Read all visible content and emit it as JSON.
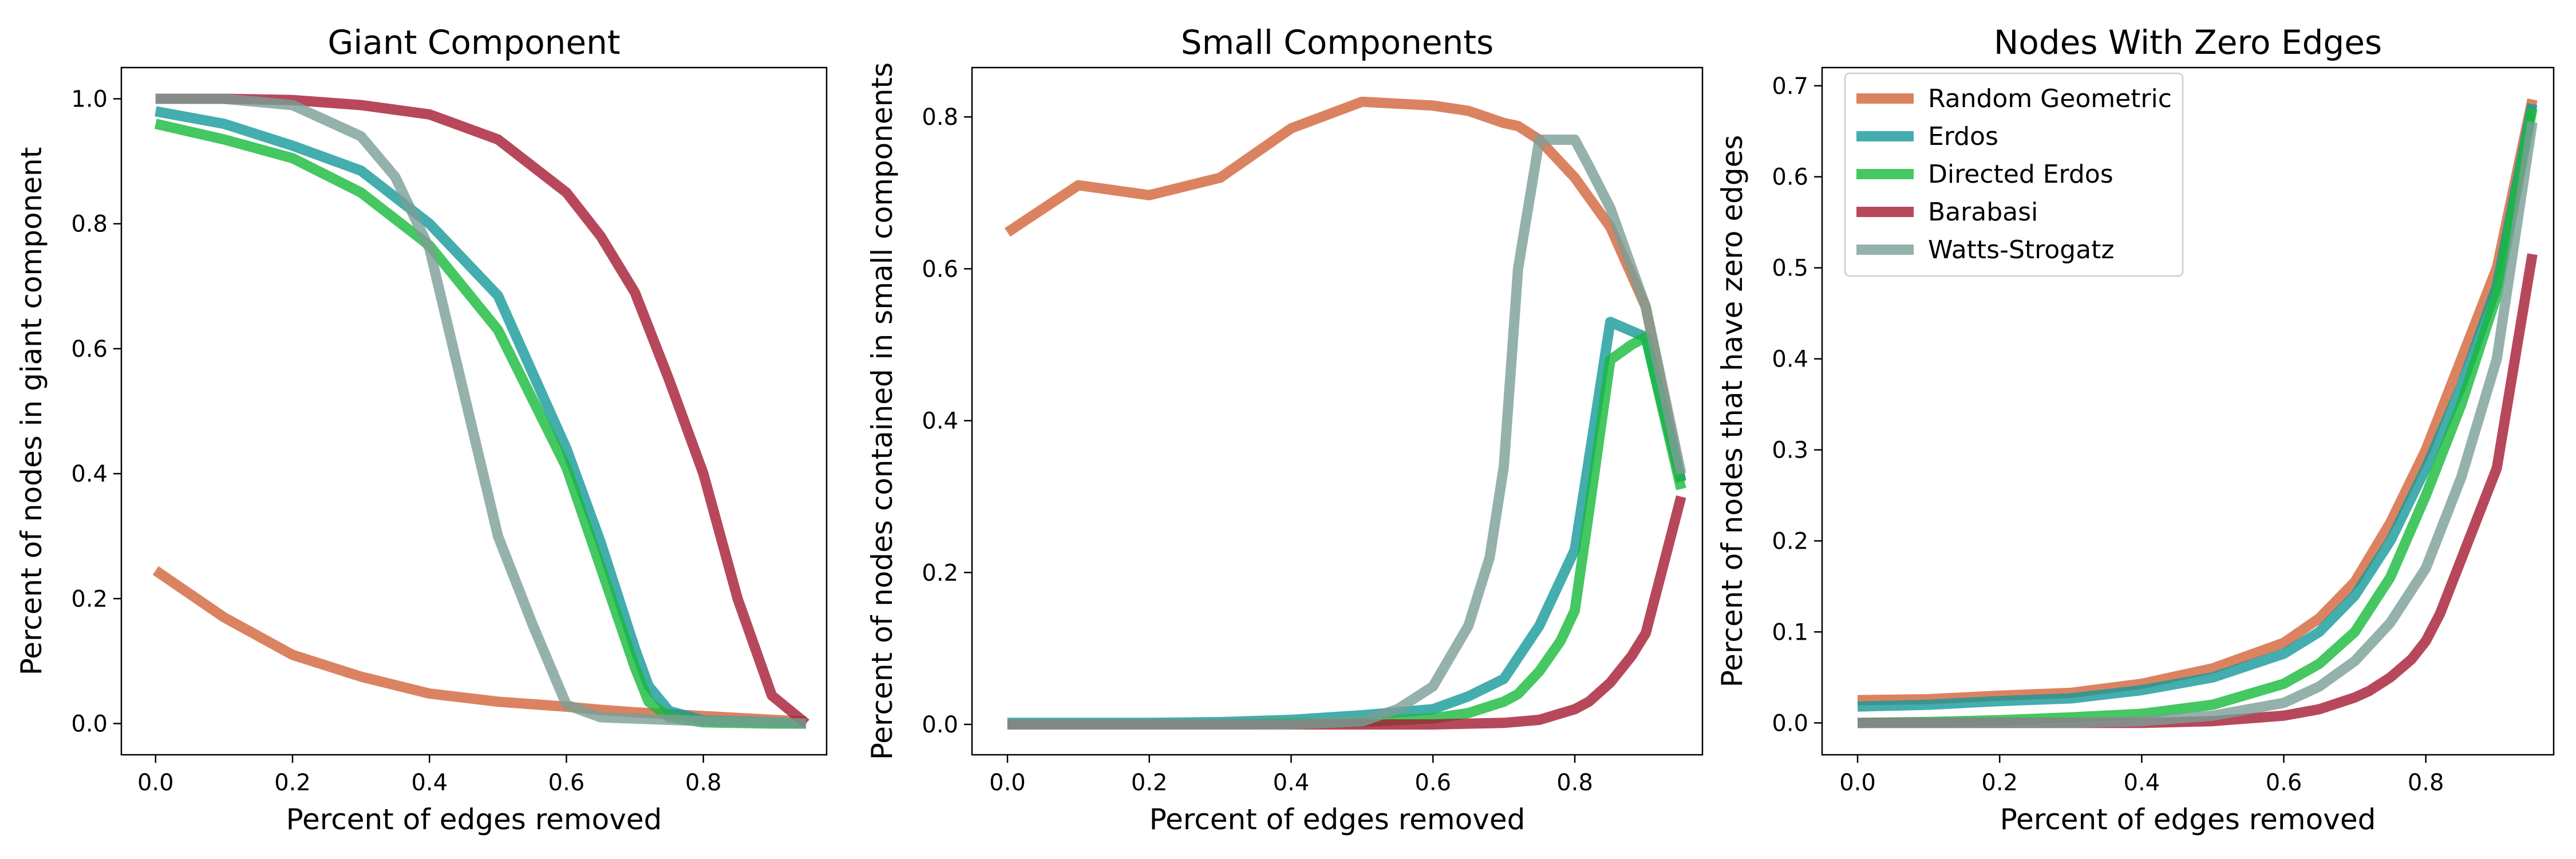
{
  "colors": {
    "Random Geometric": "#d2643a",
    "Erdos": "#15999a",
    "Directed Erdos": "#16b93a",
    "Barabasi": "#a51a32",
    "Watts-Strogatz": "#7a9d96"
  },
  "chart_data": [
    {
      "type": "line",
      "title": "Giant Component",
      "xlabel": "Percent of edges removed",
      "ylabel": "Percent of nodes in giant component",
      "xlim": [
        -0.05,
        0.98
      ],
      "ylim": [
        -0.05,
        1.05
      ],
      "xticks": [
        0.0,
        0.2,
        0.4,
        0.6,
        0.8
      ],
      "yticks": [
        0.0,
        0.2,
        0.4,
        0.6,
        0.8,
        1.0
      ],
      "xtick_labels": [
        "0.0",
        "0.2",
        "0.4",
        "0.6",
        "0.8"
      ],
      "ytick_labels": [
        "0.0",
        "0.2",
        "0.4",
        "0.6",
        "0.8",
        "1.0"
      ],
      "grid": false,
      "series": [
        {
          "name": "Random Geometric",
          "x": [
            0.0,
            0.1,
            0.2,
            0.3,
            0.4,
            0.5,
            0.6,
            0.65,
            0.7,
            0.75,
            0.8,
            0.85,
            0.9,
            0.95
          ],
          "y": [
            0.245,
            0.17,
            0.11,
            0.075,
            0.048,
            0.035,
            0.027,
            0.022,
            0.018,
            0.015,
            0.012,
            0.009,
            0.006,
            0.003
          ]
        },
        {
          "name": "Erdos",
          "x": [
            0.0,
            0.1,
            0.2,
            0.3,
            0.4,
            0.5,
            0.6,
            0.65,
            0.7,
            0.72,
            0.75,
            0.8,
            0.9,
            0.95
          ],
          "y": [
            0.98,
            0.96,
            0.925,
            0.885,
            0.8,
            0.685,
            0.44,
            0.29,
            0.12,
            0.06,
            0.02,
            0.005,
            0.002,
            0.0
          ]
        },
        {
          "name": "Directed Erdos",
          "x": [
            0.0,
            0.1,
            0.2,
            0.3,
            0.4,
            0.5,
            0.6,
            0.65,
            0.7,
            0.72,
            0.75,
            0.8,
            0.9,
            0.95
          ],
          "y": [
            0.96,
            0.935,
            0.905,
            0.85,
            0.765,
            0.63,
            0.41,
            0.25,
            0.09,
            0.035,
            0.01,
            0.002,
            0.0,
            0.0
          ]
        },
        {
          "name": "Barabasi",
          "x": [
            0.0,
            0.1,
            0.2,
            0.3,
            0.4,
            0.5,
            0.6,
            0.65,
            0.7,
            0.75,
            0.8,
            0.85,
            0.9,
            0.95
          ],
          "y": [
            1.0,
            1.0,
            0.998,
            0.99,
            0.975,
            0.935,
            0.85,
            0.78,
            0.69,
            0.55,
            0.4,
            0.2,
            0.045,
            0.0
          ]
        },
        {
          "name": "Watts-Strogatz",
          "x": [
            0.0,
            0.1,
            0.2,
            0.3,
            0.35,
            0.4,
            0.45,
            0.5,
            0.55,
            0.6,
            0.65,
            0.7,
            0.8,
            0.9,
            0.95
          ],
          "y": [
            1.0,
            1.0,
            0.99,
            0.94,
            0.875,
            0.76,
            0.53,
            0.3,
            0.16,
            0.03,
            0.01,
            0.008,
            0.004,
            0.002,
            0.0
          ]
        }
      ]
    },
    {
      "type": "line",
      "title": "Small Components",
      "xlabel": "Percent of edges removed",
      "ylabel": "Percent of nodes contained in small components",
      "xlim": [
        -0.05,
        0.98
      ],
      "ylim": [
        -0.04,
        0.865
      ],
      "xticks": [
        0.0,
        0.2,
        0.4,
        0.6,
        0.8
      ],
      "yticks": [
        0.0,
        0.2,
        0.4,
        0.6,
        0.8
      ],
      "xtick_labels": [
        "0.0",
        "0.2",
        "0.4",
        "0.6",
        "0.8"
      ],
      "ytick_labels": [
        "0.0",
        "0.2",
        "0.4",
        "0.6",
        "0.8"
      ],
      "grid": false,
      "series": [
        {
          "name": "Random Geometric",
          "x": [
            0.0,
            0.1,
            0.2,
            0.3,
            0.4,
            0.5,
            0.6,
            0.65,
            0.7,
            0.72,
            0.75,
            0.8,
            0.85,
            0.9,
            0.95
          ],
          "y": [
            0.648,
            0.71,
            0.697,
            0.72,
            0.785,
            0.82,
            0.815,
            0.808,
            0.792,
            0.788,
            0.77,
            0.72,
            0.655,
            0.55,
            0.32
          ]
        },
        {
          "name": "Erdos",
          "x": [
            0.0,
            0.1,
            0.2,
            0.3,
            0.4,
            0.5,
            0.6,
            0.65,
            0.7,
            0.75,
            0.8,
            0.85,
            0.9,
            0.95
          ],
          "y": [
            0.002,
            0.002,
            0.002,
            0.003,
            0.006,
            0.012,
            0.02,
            0.037,
            0.06,
            0.13,
            0.23,
            0.53,
            0.51,
            0.32
          ]
        },
        {
          "name": "Directed Erdos",
          "x": [
            0.0,
            0.1,
            0.2,
            0.3,
            0.4,
            0.5,
            0.6,
            0.65,
            0.7,
            0.72,
            0.75,
            0.78,
            0.8,
            0.82,
            0.85,
            0.88,
            0.9,
            0.95
          ],
          "y": [
            0.0,
            0.0,
            0.0,
            0.0,
            0.001,
            0.003,
            0.008,
            0.015,
            0.03,
            0.04,
            0.07,
            0.11,
            0.15,
            0.28,
            0.48,
            0.5,
            0.51,
            0.31
          ]
        },
        {
          "name": "Barabasi",
          "x": [
            0.0,
            0.1,
            0.2,
            0.3,
            0.4,
            0.5,
            0.6,
            0.65,
            0.7,
            0.75,
            0.8,
            0.82,
            0.85,
            0.88,
            0.9,
            0.95
          ],
          "y": [
            0.0,
            0.0,
            0.0,
            0.0,
            0.0,
            0.0,
            0.0,
            0.001,
            0.002,
            0.006,
            0.02,
            0.03,
            0.055,
            0.09,
            0.12,
            0.3
          ]
        },
        {
          "name": "Watts-Strogatz",
          "x": [
            0.0,
            0.1,
            0.2,
            0.3,
            0.4,
            0.5,
            0.55,
            0.6,
            0.65,
            0.68,
            0.7,
            0.72,
            0.75,
            0.8,
            0.82,
            0.85,
            0.9,
            0.95
          ],
          "y": [
            0.0,
            0.0,
            0.0,
            0.0,
            0.0,
            0.004,
            0.02,
            0.05,
            0.13,
            0.22,
            0.34,
            0.6,
            0.77,
            0.77,
            0.735,
            0.68,
            0.55,
            0.33
          ]
        }
      ]
    },
    {
      "type": "line",
      "title": "Nodes With Zero Edges",
      "xlabel": "Percent of edges removed",
      "ylabel": "Percent of nodes that have zero edges",
      "xlim": [
        -0.05,
        0.98
      ],
      "ylim": [
        -0.035,
        0.72
      ],
      "xticks": [
        0.0,
        0.2,
        0.4,
        0.6,
        0.8
      ],
      "yticks": [
        0.0,
        0.1,
        0.2,
        0.3,
        0.4,
        0.5,
        0.6,
        0.7
      ],
      "xtick_labels": [
        "0.0",
        "0.2",
        "0.4",
        "0.6",
        "0.8"
      ],
      "ytick_labels": [
        "0.0",
        "0.1",
        "0.2",
        "0.3",
        "0.4",
        "0.5",
        "0.6",
        "0.7"
      ],
      "grid": false,
      "legend": {
        "placement": "upper-left",
        "entries": [
          "Random Geometric",
          "Erdos",
          "Directed Erdos",
          "Barabasi",
          "Watts-Strogatz"
        ]
      },
      "series": [
        {
          "name": "Random Geometric",
          "x": [
            0.0,
            0.1,
            0.2,
            0.3,
            0.4,
            0.5,
            0.6,
            0.65,
            0.7,
            0.75,
            0.8,
            0.85,
            0.9,
            0.95
          ],
          "y": [
            0.025,
            0.026,
            0.03,
            0.033,
            0.043,
            0.06,
            0.088,
            0.115,
            0.155,
            0.22,
            0.3,
            0.4,
            0.5,
            0.685
          ]
        },
        {
          "name": "Erdos",
          "x": [
            0.0,
            0.1,
            0.2,
            0.3,
            0.4,
            0.5,
            0.6,
            0.65,
            0.7,
            0.75,
            0.8,
            0.85,
            0.9,
            0.95
          ],
          "y": [
            0.018,
            0.02,
            0.024,
            0.027,
            0.036,
            0.05,
            0.076,
            0.1,
            0.14,
            0.2,
            0.28,
            0.37,
            0.48,
            0.68
          ]
        },
        {
          "name": "Directed Erdos",
          "x": [
            0.0,
            0.1,
            0.2,
            0.3,
            0.4,
            0.5,
            0.6,
            0.65,
            0.7,
            0.75,
            0.8,
            0.85,
            0.9,
            0.95
          ],
          "y": [
            0.0,
            0.001,
            0.003,
            0.006,
            0.01,
            0.02,
            0.043,
            0.065,
            0.1,
            0.16,
            0.25,
            0.35,
            0.47,
            0.675
          ]
        },
        {
          "name": "Barabasi",
          "x": [
            0.0,
            0.1,
            0.2,
            0.3,
            0.4,
            0.5,
            0.6,
            0.65,
            0.7,
            0.72,
            0.75,
            0.78,
            0.8,
            0.82,
            0.85,
            0.88,
            0.9,
            0.95
          ],
          "y": [
            0.0,
            0.0,
            0.0,
            0.0,
            0.0,
            0.002,
            0.008,
            0.015,
            0.028,
            0.035,
            0.05,
            0.07,
            0.09,
            0.12,
            0.18,
            0.24,
            0.28,
            0.515
          ]
        },
        {
          "name": "Watts-Strogatz",
          "x": [
            0.0,
            0.1,
            0.2,
            0.3,
            0.4,
            0.5,
            0.6,
            0.65,
            0.7,
            0.75,
            0.8,
            0.85,
            0.9,
            0.95
          ],
          "y": [
            0.0,
            0.0,
            0.0,
            0.0,
            0.002,
            0.008,
            0.022,
            0.04,
            0.068,
            0.11,
            0.17,
            0.27,
            0.4,
            0.66
          ]
        }
      ]
    }
  ]
}
